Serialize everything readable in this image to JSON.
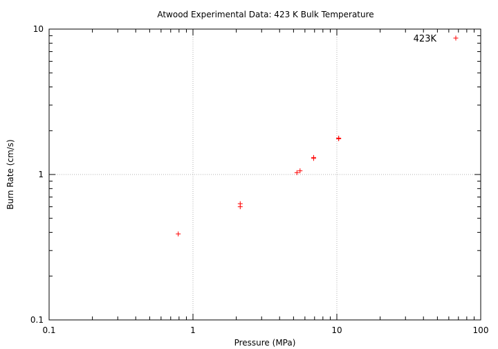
{
  "chart_data": {
    "type": "scatter",
    "title": "Atwood Experimental Data: 423 K Bulk Temperature",
    "xlabel": "Pressure (MPa)",
    "ylabel": "Burn Rate (cm/s)",
    "xscale": "log",
    "yscale": "log",
    "xlim": [
      0.1,
      100
    ],
    "ylim": [
      0.1,
      10
    ],
    "x_ticks": [
      "0.1",
      "1",
      "10",
      "100"
    ],
    "y_ticks": [
      "0.1",
      "1",
      "10"
    ],
    "grid": true,
    "legend_position": "top-right",
    "marker_color": "#ff0000",
    "series": [
      {
        "name": "423K",
        "marker": "plus",
        "points": [
          {
            "x": 0.79,
            "y": 0.39
          },
          {
            "x": 2.13,
            "y": 0.6
          },
          {
            "x": 2.13,
            "y": 0.63
          },
          {
            "x": 5.28,
            "y": 1.03
          },
          {
            "x": 5.55,
            "y": 1.06
          },
          {
            "x": 6.9,
            "y": 1.29
          },
          {
            "x": 6.9,
            "y": 1.31
          },
          {
            "x": 10.3,
            "y": 1.76
          },
          {
            "x": 10.3,
            "y": 1.78
          }
        ]
      }
    ]
  }
}
